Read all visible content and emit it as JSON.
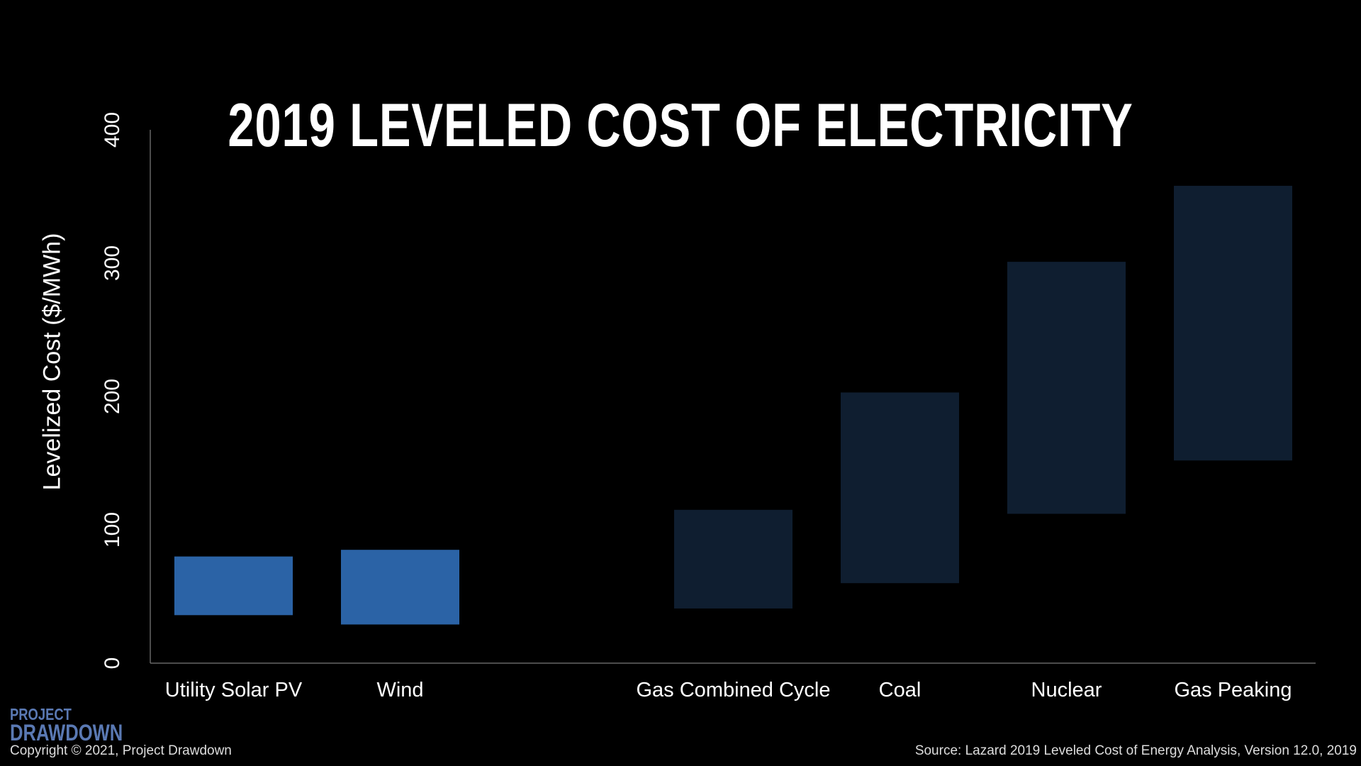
{
  "chart_data": {
    "type": "bar",
    "subtype": "floating-range",
    "title": "2019 LEVELED COST OF ELECTRICITY",
    "ylabel": "Levelized Cost ($/MWh)",
    "xlabel": "",
    "ylim": [
      0,
      400
    ],
    "yticks": [
      "0",
      "100",
      "200",
      "300",
      "400"
    ],
    "categories": [
      "Utility Solar PV",
      "Wind",
      "Gas Combined Cycle",
      "Coal",
      "Nuclear",
      "Gas Peaking"
    ],
    "ranges": [
      {
        "low": 36,
        "high": 80
      },
      {
        "low": 29,
        "high": 85
      },
      {
        "low": 41,
        "high": 115
      },
      {
        "low": 60,
        "high": 203
      },
      {
        "low": 112,
        "high": 301
      },
      {
        "low": 152,
        "high": 358
      }
    ],
    "slot_index": [
      0,
      1,
      3,
      4,
      5,
      6
    ],
    "colors": {
      "renewable": "#2b63a6",
      "conventional": "#0f1e30",
      "axis": "#666666"
    },
    "bar_color_group": [
      "renewable",
      "renewable",
      "conventional",
      "conventional",
      "conventional",
      "conventional"
    ],
    "grid": false,
    "legend": "none"
  },
  "logo": {
    "line1": "PROJECT",
    "line2": "DRAWDOWN"
  },
  "footer": {
    "copyright": "Copyright © 2021, Project Drawdown",
    "source": "Source: Lazard 2019 Leveled Cost of Energy Analysis, Version 12.0, 2019"
  }
}
